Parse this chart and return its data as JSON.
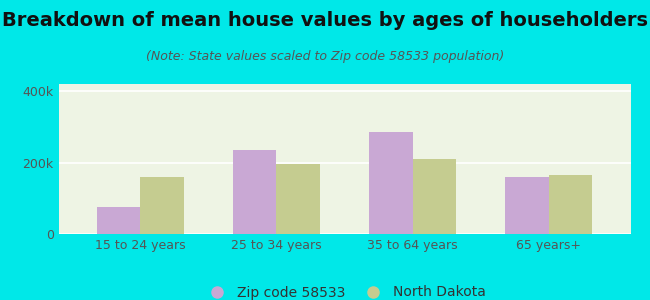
{
  "title": "Breakdown of mean house values by ages of householders",
  "subtitle": "(Note: State values scaled to Zip code 58533 population)",
  "categories": [
    "15 to 24 years",
    "25 to 34 years",
    "35 to 64 years",
    "65 years+"
  ],
  "zip_values": [
    75000,
    235000,
    285000,
    160000
  ],
  "nd_values": [
    160000,
    195000,
    210000,
    165000
  ],
  "zip_color": "#c9a8d4",
  "nd_color": "#c5cc90",
  "background_outer": "#00e8e8",
  "background_inner": "#eef4e4",
  "ylim": [
    0,
    420000
  ],
  "ytick_labels": [
    "0",
    "200k",
    "400k"
  ],
  "ytick_vals": [
    0,
    200000,
    400000
  ],
  "legend_zip": "Zip code 58533",
  "legend_nd": "North Dakota",
  "bar_width": 0.32,
  "title_fontsize": 14,
  "subtitle_fontsize": 9,
  "tick_fontsize": 9,
  "legend_fontsize": 10
}
